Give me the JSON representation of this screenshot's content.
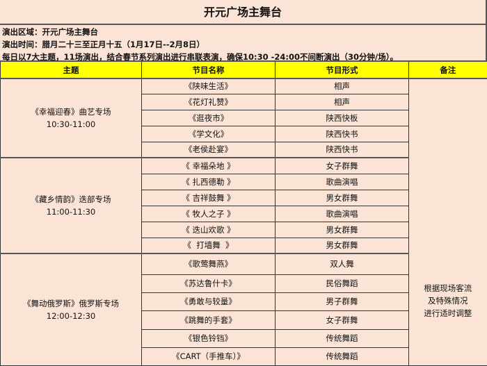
{
  "title": "开元广场主舞台",
  "info": [
    "演出区域：开元广场主舞台",
    "演出时间：腊月二十三至正月十五（1月17日--2月8日）",
    "每日以7大主题，11场演出，结合春节系列演出进行串联表演，确保10:30 -24:00不间断演出（30分钟/场）。"
  ],
  "headers": [
    "主题",
    "节目名称",
    "节目形式",
    "备注"
  ],
  "note": [
    "根据现场客流",
    "及特殊情况",
    "进行适时调整"
  ],
  "colors": {
    "background": "#fbe4d6",
    "header": "#ffff00"
  },
  "groups": [
    {
      "theme": "《幸福迎春》曲艺专场",
      "time": "10:30-11:00",
      "rows": [
        {
          "name": "《陕味生活》",
          "form": "相声"
        },
        {
          "name": "《花灯礼赞》",
          "form": "相声"
        },
        {
          "name": "《逛夜市》",
          "form": "陕西快板"
        },
        {
          "name": "《学文化》",
          "form": "陕西快书"
        },
        {
          "name": "《老侯赴宴》",
          "form": "陕西快书"
        }
      ]
    },
    {
      "theme": "《藏乡情韵》迭部专场",
      "time": "11:00-11:30",
      "rows": [
        {
          "name": "《 幸福朵地 》",
          "form": "女子群舞"
        },
        {
          "name": "《 扎西德勒 》",
          "form": "歌曲演唱"
        },
        {
          "name": "《 吉祥鼓舞 》",
          "form": "男女群舞"
        },
        {
          "name": "《 牧人之子 》",
          "form": "歌曲演唱"
        },
        {
          "name": "《 迭山欢歌 》",
          "form": "男女群舞"
        },
        {
          "name": "《  打墙舞  》",
          "form": "男女群舞"
        }
      ]
    },
    {
      "theme": "《舞动俄罗斯》俄罗斯专场",
      "time": "12:00-12:30",
      "rows": [
        {
          "name": "《歌莺舞燕》",
          "form": "双人舞"
        },
        {
          "name": "《苏达鲁什卡》",
          "form": "民俗舞蹈"
        },
        {
          "name": "《勇敢与较量》",
          "form": "男子群舞"
        },
        {
          "name": "《跳舞的手套》",
          "form": "女子群舞"
        },
        {
          "name": "《银色铃铛》",
          "form": "传统舞蹈"
        },
        {
          "name": "《CART（手推车）》",
          "form": "传统舞蹈"
        }
      ]
    }
  ]
}
